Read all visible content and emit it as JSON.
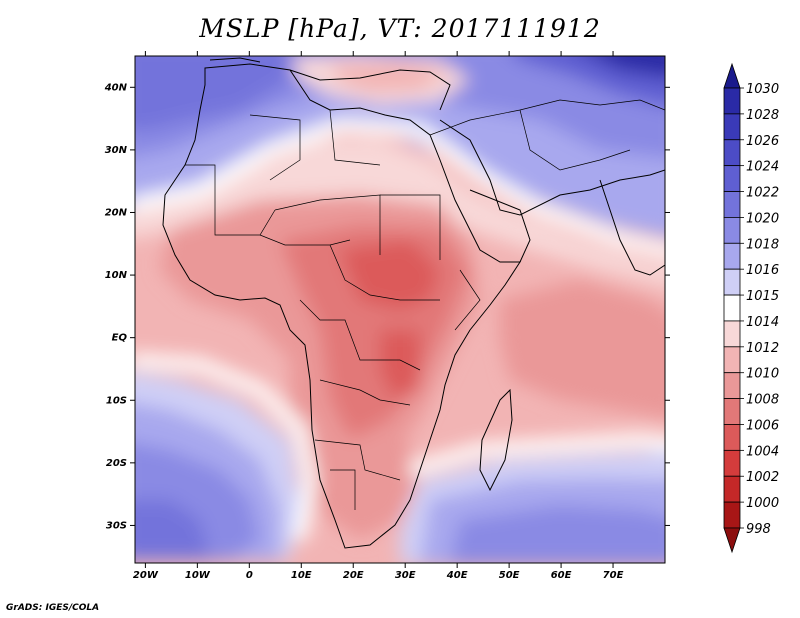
{
  "title": "MSLP [hPa], VT: 2017111912",
  "footer": "GrADS: IGES/COLA",
  "axes": {
    "lat_labels": [
      "40N",
      "30N",
      "20N",
      "10N",
      "EQ",
      "10S",
      "20S",
      "30S"
    ],
    "lat_values": [
      40,
      30,
      20,
      10,
      0,
      -10,
      -20,
      -30
    ],
    "lon_labels": [
      "20W",
      "10W",
      "0",
      "10E",
      "20E",
      "30E",
      "40E",
      "50E",
      "60E",
      "70E"
    ],
    "lon_values": [
      -20,
      -10,
      0,
      10,
      20,
      30,
      40,
      50,
      60,
      70
    ],
    "lat_range": [
      -36,
      45
    ],
    "lon_range": [
      -22,
      80
    ]
  },
  "colorbar": {
    "levels": [
      "1030",
      "1028",
      "1026",
      "1024",
      "1022",
      "1020",
      "1018",
      "1016",
      "1015",
      "1014",
      "1012",
      "1010",
      "1008",
      "1006",
      "1004",
      "1002",
      "1000",
      "998"
    ],
    "colors": [
      "#1a1a8c",
      "#2a2aa6",
      "#3a3ab8",
      "#4c4cc6",
      "#5f5fd2",
      "#7373db",
      "#8a8ae4",
      "#a8a8ee",
      "#cfcff6",
      "#ffffff",
      "#f8d8d8",
      "#f2b4b4",
      "#ea9898",
      "#e27878",
      "#dc5a5a",
      "#d43c3c",
      "#c42828",
      "#a81616",
      "#8c0e0e"
    ]
  }
}
